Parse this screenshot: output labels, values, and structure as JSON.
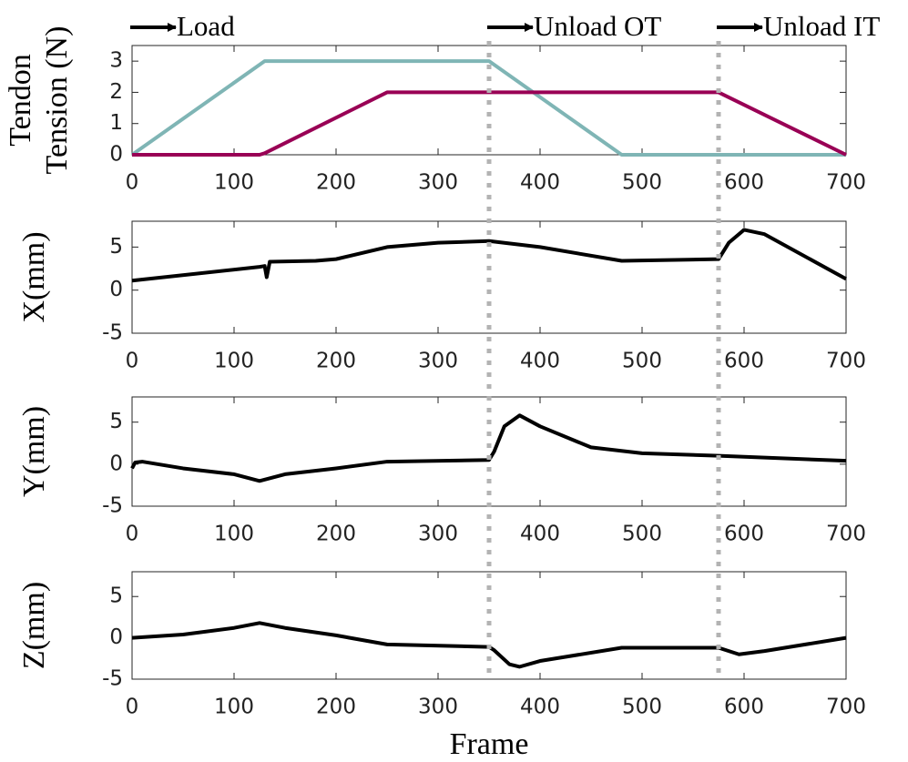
{
  "chart_data": [
    {
      "type": "line",
      "ylabel": [
        "Tendon",
        "Tension (N)"
      ],
      "xlim": [
        0,
        700
      ],
      "xticks": [
        0,
        100,
        200,
        300,
        400,
        500,
        600,
        700
      ],
      "ylim": [
        0,
        3.5
      ],
      "yticks": [
        0,
        1,
        2,
        3
      ],
      "series": [
        {
          "color": "#7fb5b5",
          "x": [
            0,
            130,
            350,
            480,
            700
          ],
          "values": [
            0,
            3,
            3,
            0,
            0
          ]
        },
        {
          "color": "#990055",
          "x": [
            0,
            125,
            130,
            250,
            575,
            700
          ],
          "values": [
            0,
            0,
            0.05,
            2,
            2,
            0
          ]
        }
      ],
      "vlines": [
        350,
        575
      ],
      "annotations": [
        {
          "text": "Load",
          "x": 0
        },
        {
          "text": "Unload OT",
          "x": 350
        },
        {
          "text": "Unload IT",
          "x": 575
        }
      ]
    },
    {
      "type": "line",
      "ylabel": [
        "X(mm)"
      ],
      "xlim": [
        0,
        700
      ],
      "xticks": [
        0,
        100,
        200,
        300,
        400,
        500,
        600,
        700
      ],
      "ylim": [
        -5,
        8
      ],
      "yticks": [
        -5,
        0,
        5
      ],
      "series": [
        {
          "color": "#000000",
          "x": [
            0,
            125,
            130,
            132,
            135,
            180,
            200,
            250,
            300,
            350,
            400,
            480,
            575,
            585,
            600,
            620,
            700
          ],
          "values": [
            1.1,
            2.7,
            2.8,
            1.5,
            3.3,
            3.4,
            3.6,
            5,
            5.5,
            5.7,
            5,
            3.4,
            3.6,
            5.5,
            7,
            6.5,
            1.3
          ]
        }
      ]
    },
    {
      "type": "line",
      "ylabel": [
        "Y(mm)"
      ],
      "xlim": [
        0,
        700
      ],
      "xticks": [
        0,
        100,
        200,
        300,
        400,
        500,
        600,
        700
      ],
      "ylim": [
        -5,
        8
      ],
      "yticks": [
        -5,
        0,
        5
      ],
      "series": [
        {
          "color": "#000000",
          "x": [
            0,
            3,
            10,
            50,
            100,
            125,
            150,
            200,
            250,
            350,
            355,
            365,
            380,
            400,
            450,
            500,
            575,
            700
          ],
          "values": [
            -0.5,
            0.2,
            0.3,
            -0.5,
            -1.2,
            -2,
            -1.2,
            -0.5,
            0.3,
            0.5,
            1.5,
            4.5,
            5.8,
            4.5,
            2,
            1.3,
            1,
            0.4
          ]
        }
      ]
    },
    {
      "type": "line",
      "ylabel": [
        "Z(mm)"
      ],
      "xlabel": "Frame",
      "xlim": [
        0,
        700
      ],
      "xticks": [
        0,
        100,
        200,
        300,
        400,
        500,
        600,
        700
      ],
      "ylim": [
        -5,
        8
      ],
      "yticks": [
        -5,
        0,
        5
      ],
      "series": [
        {
          "color": "#000000",
          "x": [
            0,
            50,
            100,
            125,
            150,
            200,
            250,
            350,
            355,
            370,
            380,
            400,
            480,
            575,
            595,
            620,
            700
          ],
          "values": [
            0,
            0.4,
            1.2,
            1.8,
            1.2,
            0.3,
            -0.8,
            -1.1,
            -1.5,
            -3.2,
            -3.5,
            -2.8,
            -1.2,
            -1.2,
            -2,
            -1.6,
            0
          ]
        }
      ]
    }
  ]
}
